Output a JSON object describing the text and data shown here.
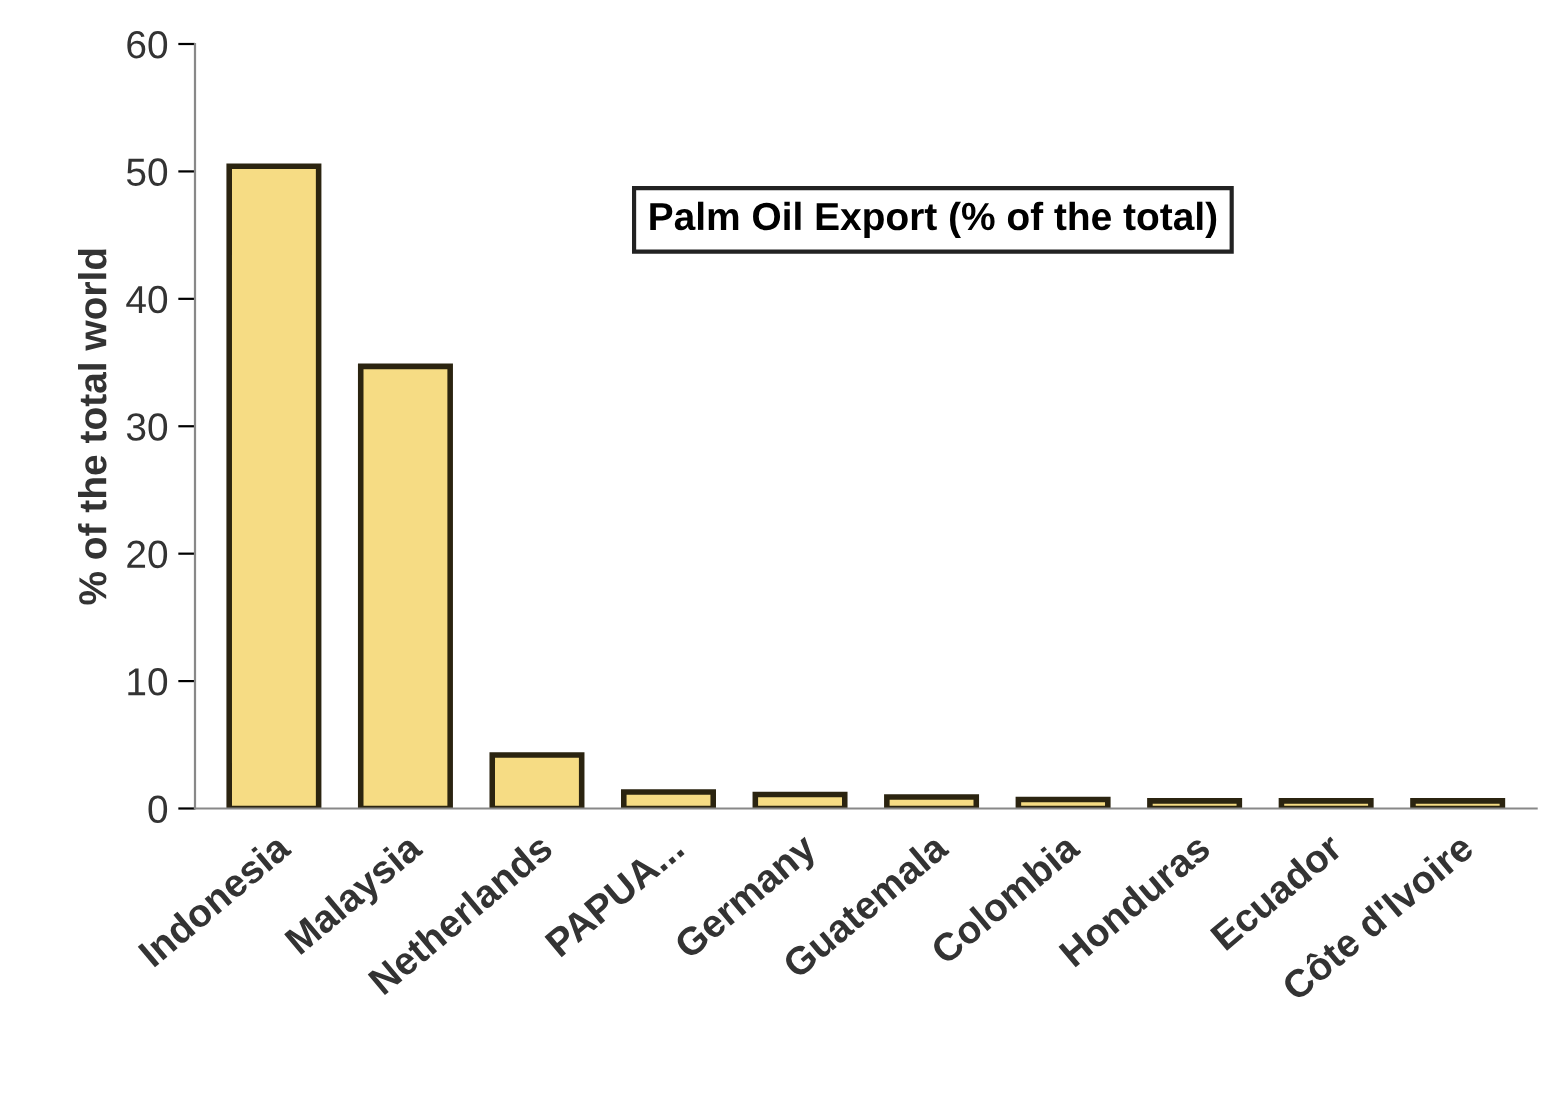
{
  "chart_data": {
    "type": "bar",
    "title": "Palm Oil Export (% of the total)",
    "ylabel": "% of the total world",
    "categories": [
      "Indonesia",
      "Malaysia",
      "Netherlands",
      "PAPUA...",
      "Germany",
      "Guatemala",
      "Colombia",
      "Honduras",
      "Ecuador",
      "Côte d'Ivoire"
    ],
    "values": [
      50.4,
      34.7,
      4.2,
      1.3,
      1.1,
      0.9,
      0.7,
      0.6,
      0.6,
      0.6
    ],
    "color": "#f6dc84",
    "ylim": [
      0,
      60
    ],
    "yticks": [
      0,
      10,
      20,
      30,
      40,
      50,
      60
    ],
    "grid": false,
    "legend": false
  }
}
